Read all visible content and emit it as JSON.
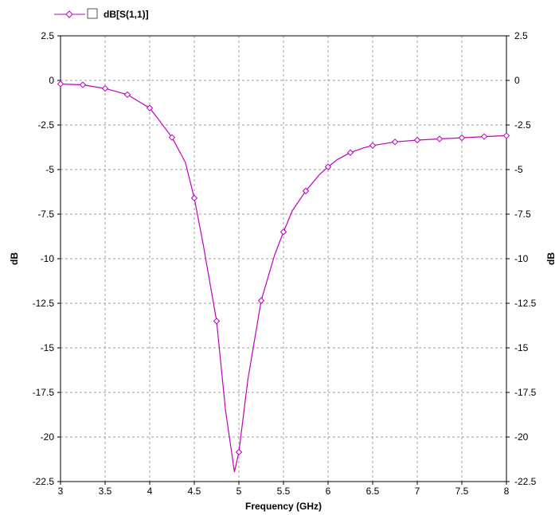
{
  "chart_data": {
    "type": "line",
    "title": "",
    "xlabel": "Frequency (GHz)",
    "ylabel_left": "dB",
    "ylabel_right": "dB",
    "xlim": [
      3,
      8
    ],
    "ylim": [
      -22.5,
      2.5
    ],
    "x_ticks": [
      "3",
      "3.5",
      "4",
      "4.5",
      "5",
      "5.5",
      "6",
      "6.5",
      "7",
      "7.5",
      "8"
    ],
    "y_ticks": [
      "2.5",
      "0",
      "-2.5",
      "-5",
      "-7.5",
      "-10",
      "-12.5",
      "-15",
      "-17.5",
      "-20",
      "-22.5"
    ],
    "grid": true,
    "legend_position": "top-left",
    "series": [
      {
        "name": "dB[S(1,1)]",
        "color": "#bf00bf",
        "marker": "diamond",
        "x": [
          3,
          3.25,
          3.5,
          3.75,
          4,
          4.25,
          4.5,
          4.75,
          5,
          5.25,
          5.5,
          5.75,
          6,
          6.25,
          6.5,
          6.75,
          7,
          7.25,
          7.5,
          7.75,
          8
        ],
        "y": [
          -0.2,
          -0.25,
          -0.45,
          -0.8,
          -1.55,
          -3.2,
          -6.6,
          -13.5,
          -20.85,
          -12.35,
          -8.5,
          -6.2,
          -4.85,
          -4.05,
          -3.65,
          -3.45,
          -3.35,
          -3.28,
          -3.22,
          -3.15,
          -3.1
        ],
        "curve_x": [
          3,
          3.25,
          3.5,
          3.75,
          4,
          4.1,
          4.25,
          4.4,
          4.5,
          4.6,
          4.75,
          4.85,
          4.95,
          5,
          5.1,
          5.25,
          5.4,
          5.5,
          5.6,
          5.75,
          5.9,
          6,
          6.1,
          6.25,
          6.4,
          6.5,
          6.75,
          7,
          7.25,
          7.5,
          7.75,
          8
        ],
        "curve_y": [
          -0.2,
          -0.25,
          -0.45,
          -0.8,
          -1.55,
          -2.2,
          -3.2,
          -4.6,
          -6.6,
          -9.2,
          -13.5,
          -18.5,
          -21.95,
          -20.85,
          -16.8,
          -12.35,
          -9.8,
          -8.5,
          -7.3,
          -6.2,
          -5.3,
          -4.85,
          -4.45,
          -4.05,
          -3.78,
          -3.65,
          -3.45,
          -3.35,
          -3.28,
          -3.22,
          -3.15,
          -3.1
        ]
      }
    ]
  }
}
